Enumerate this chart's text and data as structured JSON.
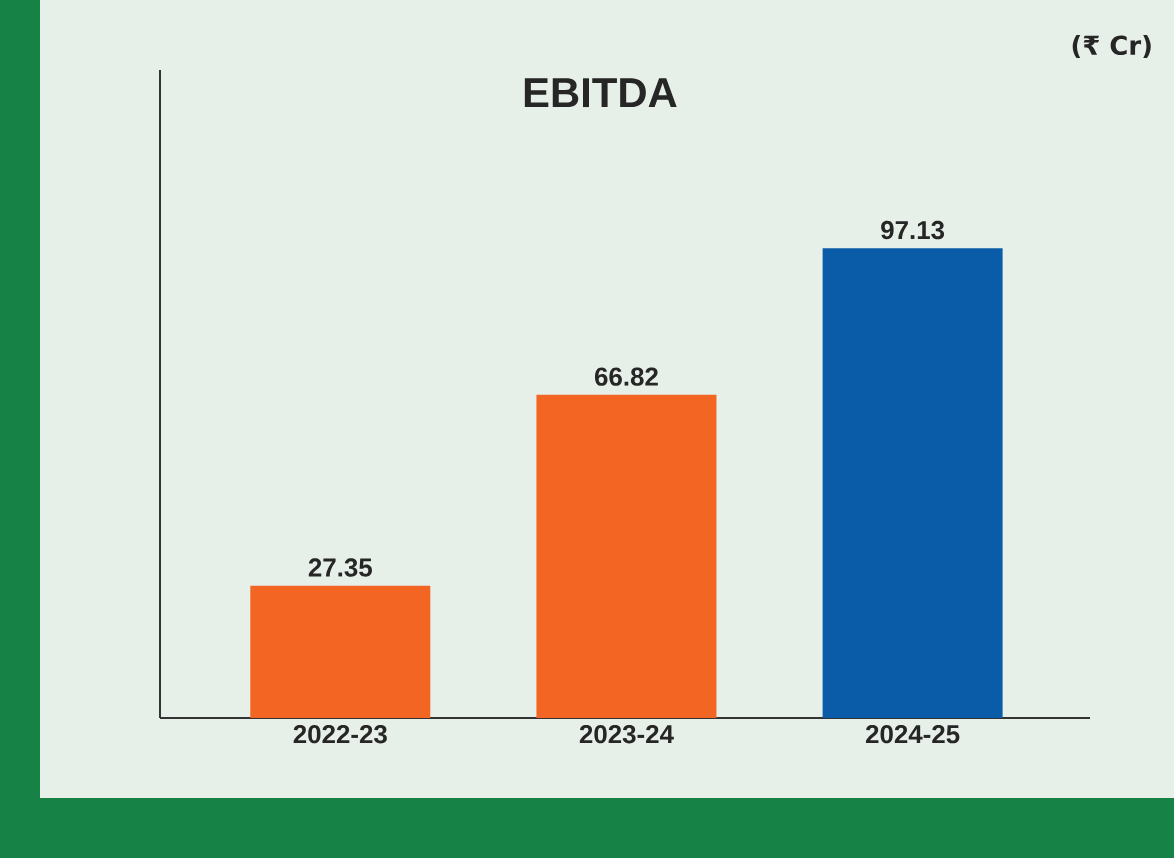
{
  "chart_data": {
    "type": "bar",
    "title": "EBITDA",
    "annotations": [
      "(₹ Cr)"
    ],
    "categories": [
      "2022-23",
      "2023-24",
      "2024-25"
    ],
    "values": [
      27.35,
      66.82,
      97.13
    ],
    "colors": [
      "#f26522",
      "#f26522",
      "#0a5ca8"
    ],
    "ylim": [
      0,
      134
    ],
    "tick_labels": "x",
    "data_labels": true
  }
}
